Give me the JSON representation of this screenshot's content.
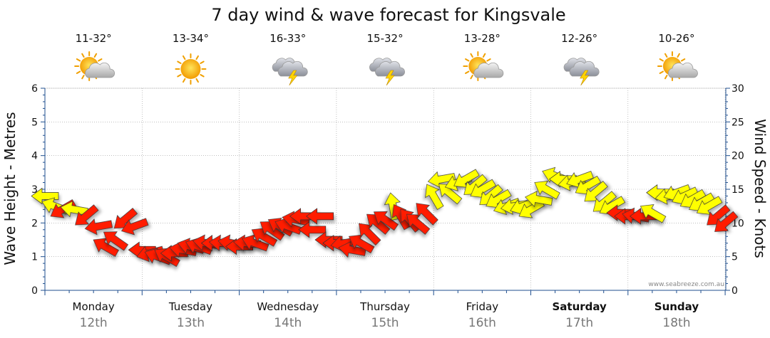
{
  "chart_data": {
    "type": "line",
    "title": "7 day wind & wave forecast for Kingsvale",
    "y_left_label": "Wave Height - Metres",
    "y_right_label": "Wind Speed - Knots",
    "y_left_range": [
      0,
      6
    ],
    "y_right_range": [
      0,
      30
    ],
    "y_left_ticks": [
      "0",
      "1",
      "2",
      "3",
      "4",
      "5",
      "6"
    ],
    "y_right_ticks": [
      "0",
      "5",
      "10",
      "15",
      "20",
      "25",
      "30"
    ],
    "credit": "www.seabreeze.com.au",
    "days": [
      {
        "name": "Monday",
        "date": "12th",
        "temp": "11-32°",
        "icon": "partly-cloudy",
        "bold": false
      },
      {
        "name": "Tuesday",
        "date": "13th",
        "temp": "13-34°",
        "icon": "sunny",
        "bold": false
      },
      {
        "name": "Wednesday",
        "date": "14th",
        "temp": "16-33°",
        "icon": "storm",
        "bold": false
      },
      {
        "name": "Thursday",
        "date": "15th",
        "temp": "15-32°",
        "icon": "storm",
        "bold": false
      },
      {
        "name": "Friday",
        "date": "16th",
        "temp": "13-28°",
        "icon": "partly-cloudy",
        "bold": false
      },
      {
        "name": "Saturday",
        "date": "17th",
        "temp": "12-26°",
        "icon": "storm",
        "bold": true
      },
      {
        "name": "Sunday",
        "date": "18th",
        "temp": "10-26°",
        "icon": "partly-cloudy",
        "bold": true
      }
    ],
    "wind_units": "knots",
    "wind_series": [
      {
        "day": 0.0,
        "speed": 14.0,
        "color": "yellow",
        "dir": 0
      },
      {
        "day": 0.1,
        "speed": 12.5,
        "color": "yellow",
        "dir": 20
      },
      {
        "day": 0.18,
        "speed": 12.0,
        "color": "red",
        "dir": 330
      },
      {
        "day": 0.3,
        "speed": 12.0,
        "color": "yellow",
        "dir": 10
      },
      {
        "day": 0.42,
        "speed": 11.0,
        "color": "red",
        "dir": 320
      },
      {
        "day": 0.55,
        "speed": 9.5,
        "color": "red",
        "dir": 350
      },
      {
        "day": 0.62,
        "speed": 6.5,
        "color": "red",
        "dir": 30
      },
      {
        "day": 0.72,
        "speed": 7.5,
        "color": "red",
        "dir": 35
      },
      {
        "day": 0.82,
        "speed": 10.5,
        "color": "red",
        "dir": 320
      },
      {
        "day": 0.92,
        "speed": 9.5,
        "color": "red",
        "dir": 340
      },
      {
        "day": 1.0,
        "speed": 6.0,
        "color": "red",
        "dir": 0
      },
      {
        "day": 1.08,
        "speed": 5.5,
        "color": "red",
        "dir": 345
      },
      {
        "day": 1.16,
        "speed": 5.0,
        "color": "red",
        "dir": 20
      },
      {
        "day": 1.25,
        "speed": 5.0,
        "color": "red",
        "dir": 30
      },
      {
        "day": 1.33,
        "speed": 5.5,
        "color": "red",
        "dir": 0
      },
      {
        "day": 1.42,
        "speed": 6.0,
        "color": "red",
        "dir": 10
      },
      {
        "day": 1.5,
        "speed": 6.5,
        "color": "red",
        "dir": 15
      },
      {
        "day": 1.58,
        "speed": 6.5,
        "color": "red",
        "dir": 20
      },
      {
        "day": 1.66,
        "speed": 7.0,
        "color": "red",
        "dir": 10
      },
      {
        "day": 1.75,
        "speed": 7.0,
        "color": "red",
        "dir": 0
      },
      {
        "day": 1.83,
        "speed": 7.0,
        "color": "red",
        "dir": 5
      },
      {
        "day": 1.92,
        "speed": 7.0,
        "color": "red",
        "dir": 10
      },
      {
        "day": 2.0,
        "speed": 6.5,
        "color": "red",
        "dir": 0
      },
      {
        "day": 2.08,
        "speed": 7.0,
        "color": "red",
        "dir": 5
      },
      {
        "day": 2.16,
        "speed": 7.0,
        "color": "red",
        "dir": 20
      },
      {
        "day": 2.25,
        "speed": 8.0,
        "color": "red",
        "dir": 30
      },
      {
        "day": 2.33,
        "speed": 9.0,
        "color": "red",
        "dir": 35
      },
      {
        "day": 2.42,
        "speed": 9.5,
        "color": "red",
        "dir": 30
      },
      {
        "day": 2.5,
        "speed": 9.5,
        "color": "red",
        "dir": 20
      },
      {
        "day": 2.58,
        "speed": 10.5,
        "color": "red",
        "dir": 10
      },
      {
        "day": 2.66,
        "speed": 11.0,
        "color": "red",
        "dir": 0
      },
      {
        "day": 2.75,
        "speed": 9.0,
        "color": "red",
        "dir": 0
      },
      {
        "day": 2.83,
        "speed": 11.0,
        "color": "red",
        "dir": 0
      },
      {
        "day": 2.92,
        "speed": 7.5,
        "color": "red",
        "dir": 0
      },
      {
        "day": 3.0,
        "speed": 7.0,
        "color": "red",
        "dir": 0
      },
      {
        "day": 3.08,
        "speed": 7.0,
        "color": "red",
        "dir": 350
      },
      {
        "day": 3.16,
        "speed": 6.0,
        "color": "red",
        "dir": 10
      },
      {
        "day": 3.25,
        "speed": 7.0,
        "color": "red",
        "dir": 30
      },
      {
        "day": 3.33,
        "speed": 8.5,
        "color": "red",
        "dir": 45
      },
      {
        "day": 3.42,
        "speed": 10.0,
        "color": "red",
        "dir": 40
      },
      {
        "day": 3.5,
        "speed": 10.5,
        "color": "red",
        "dir": 35
      },
      {
        "day": 3.58,
        "speed": 12.5,
        "color": "yellow",
        "dir": 80
      },
      {
        "day": 3.66,
        "speed": 11.0,
        "color": "red",
        "dir": 60
      },
      {
        "day": 3.75,
        "speed": 10.5,
        "color": "red",
        "dir": 50
      },
      {
        "day": 3.83,
        "speed": 10.0,
        "color": "red",
        "dir": 40
      },
      {
        "day": 3.92,
        "speed": 11.5,
        "color": "red",
        "dir": 45
      },
      {
        "day": 4.0,
        "speed": 14.0,
        "color": "yellow",
        "dir": 60
      },
      {
        "day": 4.08,
        "speed": 16.5,
        "color": "yellow",
        "dir": 350
      },
      {
        "day": 4.16,
        "speed": 14.5,
        "color": "yellow",
        "dir": 40
      },
      {
        "day": 4.25,
        "speed": 16.0,
        "color": "yellow",
        "dir": 340
      },
      {
        "day": 4.33,
        "speed": 16.5,
        "color": "yellow",
        "dir": 330
      },
      {
        "day": 4.42,
        "speed": 15.5,
        "color": "yellow",
        "dir": 320
      },
      {
        "day": 4.5,
        "speed": 15.0,
        "color": "yellow",
        "dir": 330
      },
      {
        "day": 4.58,
        "speed": 14.0,
        "color": "yellow",
        "dir": 320
      },
      {
        "day": 4.66,
        "speed": 13.5,
        "color": "yellow",
        "dir": 330
      },
      {
        "day": 4.75,
        "speed": 12.5,
        "color": "yellow",
        "dir": 340
      },
      {
        "day": 4.83,
        "speed": 12.5,
        "color": "yellow",
        "dir": 350
      },
      {
        "day": 4.92,
        "speed": 12.5,
        "color": "yellow",
        "dir": 340
      },
      {
        "day": 5.0,
        "speed": 12.0,
        "color": "yellow",
        "dir": 330
      },
      {
        "day": 5.08,
        "speed": 13.5,
        "color": "yellow",
        "dir": 10
      },
      {
        "day": 5.16,
        "speed": 15.0,
        "color": "yellow",
        "dir": 30
      },
      {
        "day": 5.25,
        "speed": 17.0,
        "color": "yellow",
        "dir": 20
      },
      {
        "day": 5.33,
        "speed": 16.5,
        "color": "yellow",
        "dir": 0
      },
      {
        "day": 5.42,
        "speed": 16.0,
        "color": "yellow",
        "dir": 350
      },
      {
        "day": 5.5,
        "speed": 16.5,
        "color": "yellow",
        "dir": 340
      },
      {
        "day": 5.58,
        "speed": 15.5,
        "color": "yellow",
        "dir": 330
      },
      {
        "day": 5.66,
        "speed": 14.5,
        "color": "yellow",
        "dir": 320
      },
      {
        "day": 5.75,
        "speed": 13.0,
        "color": "yellow",
        "dir": 320
      },
      {
        "day": 5.83,
        "speed": 12.5,
        "color": "yellow",
        "dir": 330
      },
      {
        "day": 5.92,
        "speed": 11.5,
        "color": "red",
        "dir": 0
      },
      {
        "day": 6.0,
        "speed": 11.0,
        "color": "red",
        "dir": 0
      },
      {
        "day": 6.08,
        "speed": 11.0,
        "color": "red",
        "dir": 10
      },
      {
        "day": 6.16,
        "speed": 11.0,
        "color": "red",
        "dir": 0
      },
      {
        "day": 6.25,
        "speed": 11.5,
        "color": "yellow",
        "dir": 30
      },
      {
        "day": 6.33,
        "speed": 14.5,
        "color": "yellow",
        "dir": 0
      },
      {
        "day": 6.42,
        "speed": 14.0,
        "color": "yellow",
        "dir": 350
      },
      {
        "day": 6.5,
        "speed": 14.5,
        "color": "yellow",
        "dir": 340
      },
      {
        "day": 6.58,
        "speed": 14.0,
        "color": "yellow",
        "dir": 335
      },
      {
        "day": 6.66,
        "speed": 13.5,
        "color": "yellow",
        "dir": 330
      },
      {
        "day": 6.75,
        "speed": 13.0,
        "color": "yellow",
        "dir": 330
      },
      {
        "day": 6.83,
        "speed": 12.5,
        "color": "yellow",
        "dir": 330
      },
      {
        "day": 6.92,
        "speed": 11.0,
        "color": "red",
        "dir": 320
      },
      {
        "day": 7.0,
        "speed": 10.0,
        "color": "red",
        "dir": 320
      }
    ],
    "colors": {
      "red": "#ff1a00",
      "yellow": "#ffff00",
      "outline": "#333333",
      "grid": "#999999",
      "axis": "#1f4f8f"
    }
  }
}
